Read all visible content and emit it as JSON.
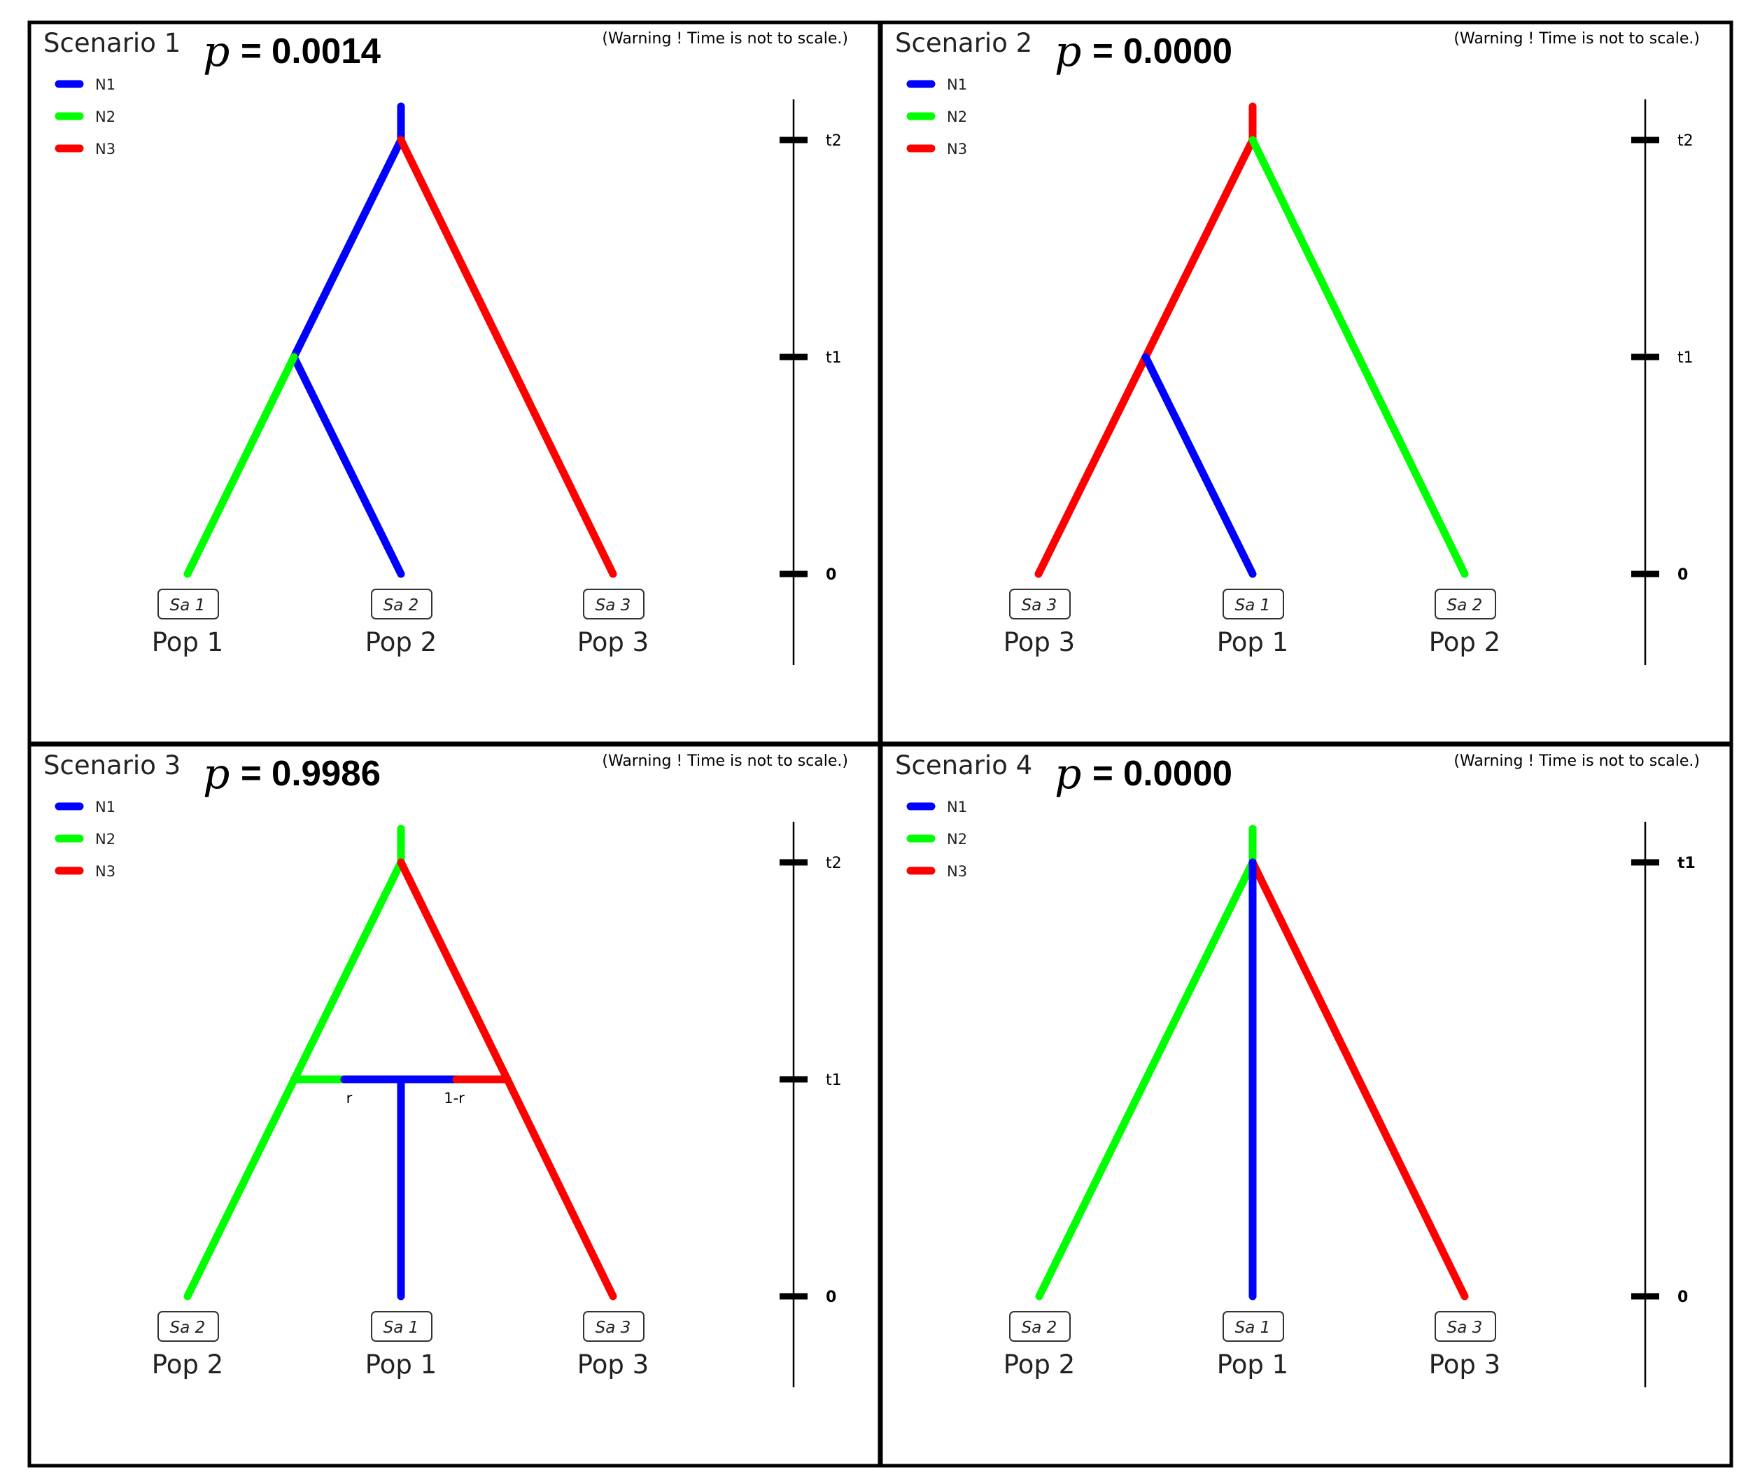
{
  "colors": {
    "N1": "#0000ff",
    "N2": "#00ff00",
    "N3": "#ff0000"
  },
  "legend": [
    "N1",
    "N2",
    "N3"
  ],
  "warning": "(Warning ! Time is not to scale.)",
  "p_symbol": "p",
  "panels": [
    {
      "title": "Scenario 1",
      "p_text": "= 0.0014",
      "axis_labels": [
        "t2",
        "t1",
        "0"
      ],
      "samples": [
        {
          "label": "Sa 1",
          "pop": "Pop 1"
        },
        {
          "label": "Sa 2",
          "pop": "Pop 2"
        },
        {
          "label": "Sa 3",
          "pop": "Pop 3"
        }
      ],
      "extra_labels": []
    },
    {
      "title": "Scenario 2",
      "p_text": "= 0.0000",
      "axis_labels": [
        "t2",
        "t1",
        "0"
      ],
      "samples": [
        {
          "label": "Sa 3",
          "pop": "Pop 3"
        },
        {
          "label": "Sa 1",
          "pop": "Pop 1"
        },
        {
          "label": "Sa 2",
          "pop": "Pop 2"
        }
      ],
      "extra_labels": []
    },
    {
      "title": "Scenario 3",
      "p_text": "= 0.9986",
      "axis_labels": [
        "t2",
        "t1",
        "0"
      ],
      "samples": [
        {
          "label": "Sa 2",
          "pop": "Pop 2"
        },
        {
          "label": "Sa 1",
          "pop": "Pop 1"
        },
        {
          "label": "Sa 3",
          "pop": "Pop 3"
        }
      ],
      "extra_labels": [
        "r",
        "1-r"
      ]
    },
    {
      "title": "Scenario 4",
      "p_text": "= 0.0000",
      "axis_labels": [
        "t1",
        "0"
      ],
      "samples": [
        {
          "label": "Sa 2",
          "pop": "Pop 2"
        },
        {
          "label": "Sa 1",
          "pop": "Pop 1"
        },
        {
          "label": "Sa 3",
          "pop": "Pop 3"
        }
      ],
      "extra_labels": []
    }
  ]
}
